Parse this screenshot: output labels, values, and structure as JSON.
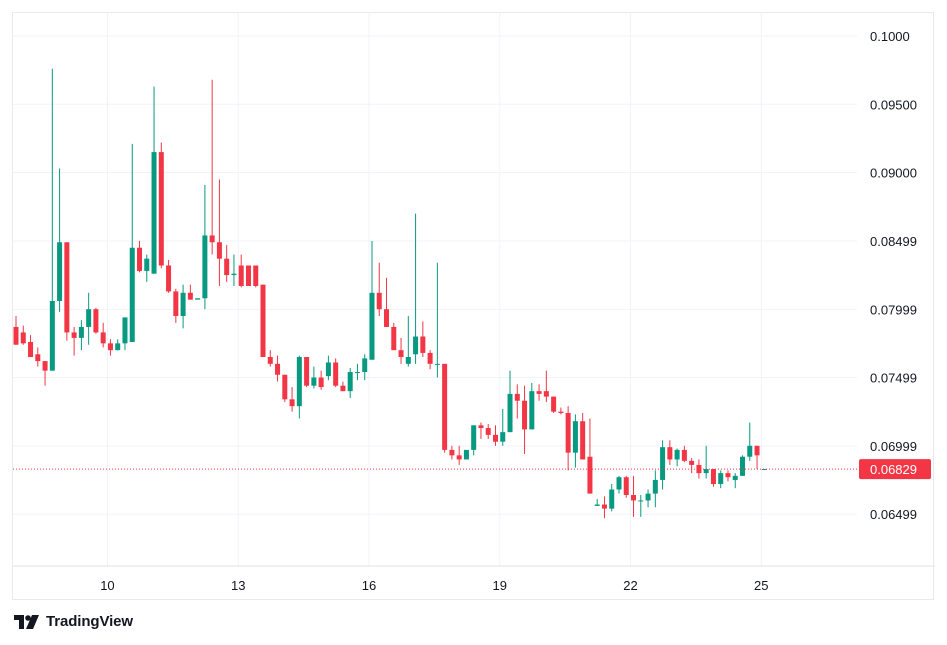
{
  "app": {
    "brand": "TradingView"
  },
  "colors": {
    "up": "#089981",
    "down": "#f23645",
    "grid": "#f0f3fa",
    "text": "#131722",
    "last_price_line": "#f23645"
  },
  "chart_data": {
    "type": "candlestick",
    "title": "",
    "price_axis_labels": [
      "0.1000",
      "0.09500",
      "0.09000",
      "0.08499",
      "0.07999",
      "0.07499",
      "0.06999",
      "0.06499"
    ],
    "price_axis_values": [
      0.1,
      0.095,
      0.09,
      0.08499,
      0.07999,
      0.07499,
      0.06999,
      0.06499
    ],
    "time_axis_labels": [
      "10",
      "13",
      "16",
      "19",
      "22",
      "25"
    ],
    "time_axis_candle_index": [
      13,
      31,
      49,
      67,
      85,
      103
    ],
    "last_price": {
      "value": 0.06829,
      "label": "0.06829"
    },
    "ylim": [
      0.0626,
      0.1016
    ],
    "candles": [
      [
        0.0787,
        0.0795,
        0.0774,
        0.0774
      ],
      [
        0.0783,
        0.0788,
        0.0774,
        0.0775
      ],
      [
        0.0776,
        0.0781,
        0.0765,
        0.0765
      ],
      [
        0.0767,
        0.0772,
        0.0758,
        0.0762
      ],
      [
        0.0762,
        0.0762,
        0.0744,
        0.0755
      ],
      [
        0.0755,
        0.0976,
        0.0755,
        0.0806
      ],
      [
        0.0806,
        0.0903,
        0.0798,
        0.0849
      ],
      [
        0.0849,
        0.0849,
        0.0777,
        0.0783
      ],
      [
        0.0783,
        0.0787,
        0.0766,
        0.0779
      ],
      [
        0.0779,
        0.0792,
        0.077,
        0.0787
      ],
      [
        0.0787,
        0.0812,
        0.0774,
        0.08
      ],
      [
        0.08,
        0.0801,
        0.0782,
        0.0783
      ],
      [
        0.0783,
        0.079,
        0.0772,
        0.0775
      ],
      [
        0.0775,
        0.0778,
        0.0766,
        0.077
      ],
      [
        0.077,
        0.0778,
        0.077,
        0.0775
      ],
      [
        0.0775,
        0.0792,
        0.077,
        0.0794
      ],
      [
        0.0776,
        0.0921,
        0.0776,
        0.0845
      ],
      [
        0.0845,
        0.085,
        0.0827,
        0.0828
      ],
      [
        0.0828,
        0.084,
        0.082,
        0.0837
      ],
      [
        0.0826,
        0.0963,
        0.0826,
        0.0915
      ],
      [
        0.0915,
        0.0922,
        0.083,
        0.0832
      ],
      [
        0.0832,
        0.0836,
        0.0812,
        0.0813
      ],
      [
        0.0813,
        0.0815,
        0.079,
        0.0795
      ],
      [
        0.0795,
        0.0818,
        0.0786,
        0.0812
      ],
      [
        0.0812,
        0.0818,
        0.0807,
        0.0807
      ],
      [
        0.0807,
        0.0807,
        0.0807,
        0.0808
      ],
      [
        0.0808,
        0.0891,
        0.08,
        0.0854
      ],
      [
        0.0854,
        0.0968,
        0.084,
        0.0849
      ],
      [
        0.0849,
        0.0895,
        0.0817,
        0.0837
      ],
      [
        0.0837,
        0.0847,
        0.082,
        0.0825
      ],
      [
        0.0825,
        0.084,
        0.0817,
        0.0826
      ],
      [
        0.0832,
        0.084,
        0.0816,
        0.0817
      ],
      [
        0.0832,
        0.0832,
        0.0817,
        0.0817
      ],
      [
        0.0832,
        0.0832,
        0.0816,
        0.0817
      ],
      [
        0.0818,
        0.0818,
        0.0765,
        0.0765
      ],
      [
        0.0765,
        0.077,
        0.0758,
        0.076
      ],
      [
        0.076,
        0.0766,
        0.0747,
        0.0752
      ],
      [
        0.0752,
        0.0752,
        0.0732,
        0.0734
      ],
      [
        0.0734,
        0.0743,
        0.0725,
        0.0729
      ],
      [
        0.0729,
        0.0766,
        0.072,
        0.0765
      ],
      [
        0.0765,
        0.0765,
        0.0743,
        0.0744
      ],
      [
        0.0744,
        0.0758,
        0.0742,
        0.075
      ],
      [
        0.075,
        0.0755,
        0.0741,
        0.0743
      ],
      [
        0.0751,
        0.0766,
        0.0748,
        0.0761
      ],
      [
        0.0761,
        0.0764,
        0.0743,
        0.0744
      ],
      [
        0.0744,
        0.0747,
        0.074,
        0.074
      ],
      [
        0.074,
        0.0757,
        0.0735,
        0.0754
      ],
      [
        0.0754,
        0.076,
        0.0748,
        0.0754
      ],
      [
        0.0754,
        0.0767,
        0.0748,
        0.0764
      ],
      [
        0.0763,
        0.085,
        0.0763,
        0.0812
      ],
      [
        0.0812,
        0.0834,
        0.0795,
        0.08
      ],
      [
        0.08,
        0.0823,
        0.079,
        0.0787
      ],
      [
        0.0787,
        0.079,
        0.0772,
        0.077
      ],
      [
        0.077,
        0.0779,
        0.076,
        0.0765
      ],
      [
        0.076,
        0.0795,
        0.0758,
        0.0765
      ],
      [
        0.0767,
        0.087,
        0.076,
        0.078
      ],
      [
        0.078,
        0.0791,
        0.0765,
        0.0768
      ],
      [
        0.0768,
        0.077,
        0.0756,
        0.076
      ],
      [
        0.076,
        0.0834,
        0.075,
        0.076
      ],
      [
        0.076,
        0.076,
        0.0695,
        0.0697
      ],
      [
        0.0697,
        0.07,
        0.069,
        0.0693
      ],
      [
        0.0693,
        0.07,
        0.0686,
        0.069
      ],
      [
        0.069,
        0.0696,
        0.069,
        0.0697
      ],
      [
        0.0697,
        0.0715,
        0.0693,
        0.0715
      ],
      [
        0.0715,
        0.0717,
        0.0705,
        0.0713
      ],
      [
        0.0713,
        0.0716,
        0.0705,
        0.0708
      ],
      [
        0.0708,
        0.0715,
        0.07,
        0.0703
      ],
      [
        0.0703,
        0.0727,
        0.07,
        0.071
      ],
      [
        0.071,
        0.0755,
        0.071,
        0.0738
      ],
      [
        0.0738,
        0.0745,
        0.072,
        0.0733
      ],
      [
        0.0733,
        0.0744,
        0.0694,
        0.0712
      ],
      [
        0.0712,
        0.0746,
        0.0712,
        0.074
      ],
      [
        0.074,
        0.0745,
        0.0733,
        0.0738
      ],
      [
        0.074,
        0.0755,
        0.0732,
        0.0736
      ],
      [
        0.0736,
        0.0736,
        0.0724,
        0.0725
      ],
      [
        0.0725,
        0.0728,
        0.0723,
        0.0724
      ],
      [
        0.0724,
        0.0729,
        0.0682,
        0.0695
      ],
      [
        0.0695,
        0.0723,
        0.0684,
        0.0718
      ],
      [
        0.0718,
        0.0724,
        0.069,
        0.069
      ],
      [
        0.0692,
        0.072,
        0.0665,
        0.0665
      ],
      [
        0.0656,
        0.0661,
        0.0656,
        0.0657
      ],
      [
        0.0657,
        0.0663,
        0.0647,
        0.0654
      ],
      [
        0.0654,
        0.0672,
        0.0652,
        0.0668
      ],
      [
        0.0668,
        0.0678,
        0.0665,
        0.0677
      ],
      [
        0.0677,
        0.0678,
        0.0662,
        0.0664
      ],
      [
        0.0664,
        0.0678,
        0.0648,
        0.066
      ],
      [
        0.066,
        0.0664,
        0.0648,
        0.066
      ],
      [
        0.066,
        0.0668,
        0.0655,
        0.0665
      ],
      [
        0.0665,
        0.0682,
        0.0655,
        0.0675
      ],
      [
        0.0675,
        0.0704,
        0.0668,
        0.0699
      ],
      [
        0.0699,
        0.0704,
        0.0686,
        0.069
      ],
      [
        0.069,
        0.0698,
        0.0685,
        0.0697
      ],
      [
        0.0697,
        0.07,
        0.0688,
        0.0689
      ],
      [
        0.0689,
        0.0691,
        0.068,
        0.0686
      ],
      [
        0.0686,
        0.069,
        0.0676,
        0.068
      ],
      [
        0.068,
        0.07,
        0.0676,
        0.0683
      ],
      [
        0.0683,
        0.0683,
        0.067,
        0.0672
      ],
      [
        0.0672,
        0.0682,
        0.0669,
        0.068
      ],
      [
        0.068,
        0.0682,
        0.0674,
        0.0677
      ],
      [
        0.0675,
        0.068,
        0.0669,
        0.0678
      ],
      [
        0.0678,
        0.0693,
        0.0678,
        0.0692
      ],
      [
        0.0692,
        0.0717,
        0.0689,
        0.07
      ],
      [
        0.07,
        0.07,
        0.0683,
        0.0693
      ],
      [
        0.0683,
        0.0683,
        0.0683,
        0.0683
      ]
    ]
  }
}
